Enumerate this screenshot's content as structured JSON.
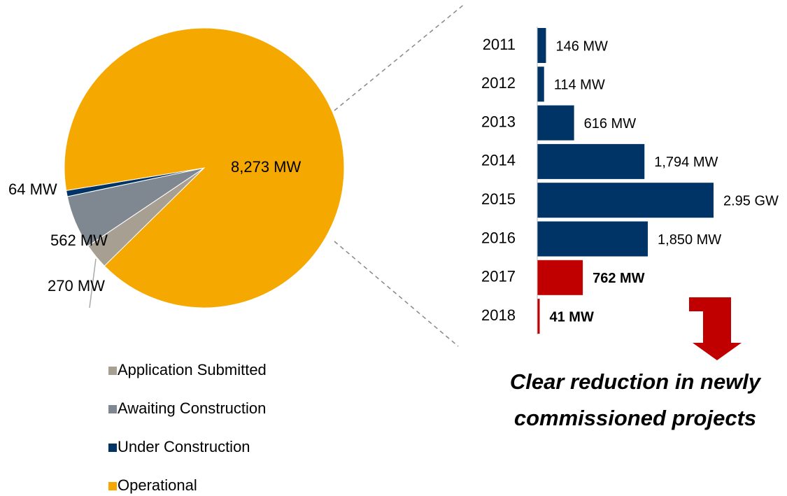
{
  "chart_data": [
    {
      "type": "pie",
      "categories": [
        "Application Submitted",
        "Awaiting Construction",
        "Under Construction",
        "Operational"
      ],
      "values": [
        270,
        562,
        64,
        8273
      ],
      "value_labels": [
        "270 MW",
        "562 MW",
        "64 MW",
        "8,273 MW"
      ],
      "colors": [
        "#a89f93",
        "#7f8790",
        "#003366",
        "#f5a800"
      ],
      "legend": "bottom"
    },
    {
      "type": "bar",
      "orientation": "horizontal",
      "categories": [
        "2011",
        "2012",
        "2013",
        "2014",
        "2015",
        "2016",
        "2017",
        "2018"
      ],
      "values": [
        146,
        114,
        616,
        1794,
        2950,
        1850,
        762,
        41
      ],
      "value_labels": [
        "146 MW",
        "114 MW",
        "616 MW",
        "1,794 MW",
        "2.95 GW",
        "1,850 MW",
        "762 MW",
        "41 MW"
      ],
      "colors": [
        "#003366",
        "#003366",
        "#003366",
        "#003366",
        "#003366",
        "#003366",
        "#c00000",
        "#c00000"
      ],
      "annotation": [
        "Clear reduction in newly",
        "commissioned projects"
      ]
    }
  ]
}
